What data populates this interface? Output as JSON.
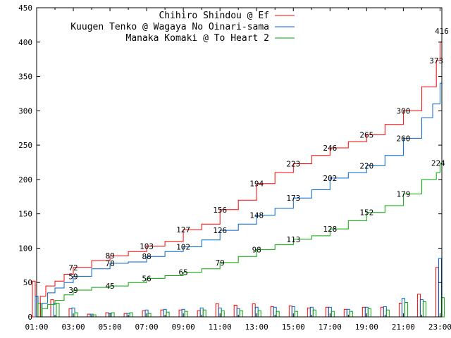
{
  "chart_data": {
    "type": "line",
    "title": "",
    "xlabel": "",
    "ylabel": "",
    "ylim": [
      0,
      450
    ],
    "xlim": [
      "01:00",
      "23:00"
    ],
    "yticks": [
      0,
      50,
      100,
      150,
      200,
      250,
      300,
      350,
      400,
      450
    ],
    "xticks": [
      "01:00",
      "03:00",
      "05:00",
      "07:00",
      "09:00",
      "11:00",
      "13:00",
      "15:00",
      "17:00",
      "19:00",
      "21:00",
      "23:00"
    ],
    "grid": false,
    "legend_position": "top-right",
    "series": [
      {
        "name": "Chihiro Shindou @ Ef",
        "color": "#ff0000",
        "cumulative": [
          [
            1.0,
            0
          ],
          [
            1.2,
            30
          ],
          [
            1.5,
            45
          ],
          [
            2.0,
            52
          ],
          [
            2.5,
            62
          ],
          [
            3.0,
            72
          ],
          [
            4.0,
            82
          ],
          [
            5.0,
            89
          ],
          [
            6.0,
            95
          ],
          [
            7.0,
            103
          ],
          [
            8.0,
            110
          ],
          [
            9.0,
            127
          ],
          [
            10.0,
            135
          ],
          [
            11.0,
            156
          ],
          [
            12.0,
            170
          ],
          [
            13.0,
            194
          ],
          [
            14.0,
            210
          ],
          [
            15.0,
            223
          ],
          [
            16.0,
            235
          ],
          [
            17.0,
            246
          ],
          [
            18.0,
            255
          ],
          [
            19.0,
            265
          ],
          [
            20.0,
            280
          ],
          [
            21.0,
            300
          ],
          [
            22.0,
            335
          ],
          [
            22.8,
            373
          ],
          [
            23.0,
            400
          ],
          [
            23.1,
            416
          ]
        ],
        "labels": [
          [
            3.0,
            72
          ],
          [
            5.0,
            89
          ],
          [
            7.0,
            103
          ],
          [
            9.0,
            127
          ],
          [
            11.0,
            156
          ],
          [
            13.0,
            194
          ],
          [
            15.0,
            223
          ],
          [
            17.0,
            246
          ],
          [
            19.0,
            265
          ],
          [
            21.0,
            300
          ],
          [
            22.8,
            373
          ],
          [
            23.1,
            416
          ]
        ],
        "hourly": [
          [
            1,
            52
          ],
          [
            2,
            25
          ],
          [
            3,
            12
          ],
          [
            4,
            4
          ],
          [
            5,
            6
          ],
          [
            6,
            5
          ],
          [
            7,
            9
          ],
          [
            8,
            10
          ],
          [
            9,
            10
          ],
          [
            10,
            9
          ],
          [
            11,
            19
          ],
          [
            12,
            17
          ],
          [
            13,
            19
          ],
          [
            14,
            15
          ],
          [
            15,
            16
          ],
          [
            16,
            13
          ],
          [
            17,
            14
          ],
          [
            18,
            11
          ],
          [
            19,
            14
          ],
          [
            20,
            14
          ],
          [
            21,
            20
          ],
          [
            22,
            33
          ],
          [
            23,
            72
          ]
        ]
      },
      {
        "name": "Kuugen Tenko @ Wagaya No Oinari-sama",
        "color": "#0066cc",
        "cumulative": [
          [
            1.0,
            0
          ],
          [
            1.3,
            20
          ],
          [
            1.6,
            35
          ],
          [
            2.0,
            42
          ],
          [
            2.5,
            50
          ],
          [
            3.0,
            59
          ],
          [
            4.0,
            70
          ],
          [
            5.0,
            78
          ],
          [
            6.0,
            80
          ],
          [
            7.0,
            88
          ],
          [
            8.0,
            95
          ],
          [
            9.0,
            102
          ],
          [
            10.0,
            112
          ],
          [
            11.0,
            126
          ],
          [
            12.0,
            135
          ],
          [
            13.0,
            148
          ],
          [
            14.0,
            158
          ],
          [
            15.0,
            173
          ],
          [
            16.0,
            185
          ],
          [
            17.0,
            202
          ],
          [
            18.0,
            210
          ],
          [
            19.0,
            220
          ],
          [
            20.0,
            235
          ],
          [
            21.0,
            260
          ],
          [
            22.0,
            290
          ],
          [
            22.6,
            310
          ],
          [
            23.0,
            340
          ],
          [
            23.1,
            373
          ]
        ],
        "labels": [
          [
            3.0,
            59
          ],
          [
            5.0,
            78
          ],
          [
            7.0,
            88
          ],
          [
            9.0,
            102
          ],
          [
            11.0,
            126
          ],
          [
            13.0,
            148
          ],
          [
            15.0,
            173
          ],
          [
            17.0,
            202
          ],
          [
            19.0,
            220
          ],
          [
            21.0,
            260
          ]
        ],
        "hourly": [
          [
            1,
            30
          ],
          [
            2,
            20
          ],
          [
            3,
            13
          ],
          [
            4,
            4
          ],
          [
            5,
            5
          ],
          [
            6,
            5
          ],
          [
            7,
            10
          ],
          [
            8,
            11
          ],
          [
            9,
            11
          ],
          [
            10,
            13
          ],
          [
            11,
            13
          ],
          [
            12,
            12
          ],
          [
            13,
            14
          ],
          [
            14,
            14
          ],
          [
            15,
            15
          ],
          [
            16,
            14
          ],
          [
            17,
            14
          ],
          [
            18,
            11
          ],
          [
            19,
            14
          ],
          [
            20,
            15
          ],
          [
            21,
            27
          ],
          [
            22,
            25
          ],
          [
            23,
            85
          ]
        ]
      },
      {
        "name": "Manaka Komaki @ To Heart 2",
        "color": "#00aa00",
        "cumulative": [
          [
            1.0,
            0
          ],
          [
            1.3,
            12
          ],
          [
            1.6,
            18
          ],
          [
            2.0,
            24
          ],
          [
            2.5,
            32
          ],
          [
            3.0,
            39
          ],
          [
            4.0,
            43
          ],
          [
            5.0,
            45
          ],
          [
            6.0,
            50
          ],
          [
            7.0,
            56
          ],
          [
            8.0,
            60
          ],
          [
            9.0,
            65
          ],
          [
            10.0,
            70
          ],
          [
            11.0,
            79
          ],
          [
            12.0,
            88
          ],
          [
            13.0,
            98
          ],
          [
            14.0,
            105
          ],
          [
            15.0,
            113
          ],
          [
            16.0,
            118
          ],
          [
            17.0,
            128
          ],
          [
            18.0,
            140
          ],
          [
            19.0,
            152
          ],
          [
            20.0,
            162
          ],
          [
            21.0,
            179
          ],
          [
            22.0,
            200
          ],
          [
            22.8,
            210
          ],
          [
            23.0,
            224
          ],
          [
            23.1,
            230
          ]
        ],
        "labels": [
          [
            3.0,
            39
          ],
          [
            5.0,
            45
          ],
          [
            7.0,
            56
          ],
          [
            9.0,
            65
          ],
          [
            11.0,
            79
          ],
          [
            13.0,
            98
          ],
          [
            15.0,
            113
          ],
          [
            17.0,
            128
          ],
          [
            19.0,
            152
          ],
          [
            21.0,
            179
          ],
          [
            22.9,
            224
          ]
        ],
        "hourly": [
          [
            1,
            20
          ],
          [
            2,
            20
          ],
          [
            3,
            6
          ],
          [
            4,
            3
          ],
          [
            5,
            6
          ],
          [
            6,
            6
          ],
          [
            7,
            5
          ],
          [
            8,
            7
          ],
          [
            9,
            8
          ],
          [
            10,
            10
          ],
          [
            11,
            9
          ],
          [
            12,
            9
          ],
          [
            13,
            9
          ],
          [
            14,
            8
          ],
          [
            15,
            8
          ],
          [
            16,
            10
          ],
          [
            17,
            8
          ],
          [
            18,
            8
          ],
          [
            19,
            12
          ],
          [
            20,
            10
          ],
          [
            21,
            21
          ],
          [
            22,
            22
          ],
          [
            23,
            28
          ]
        ]
      }
    ]
  }
}
